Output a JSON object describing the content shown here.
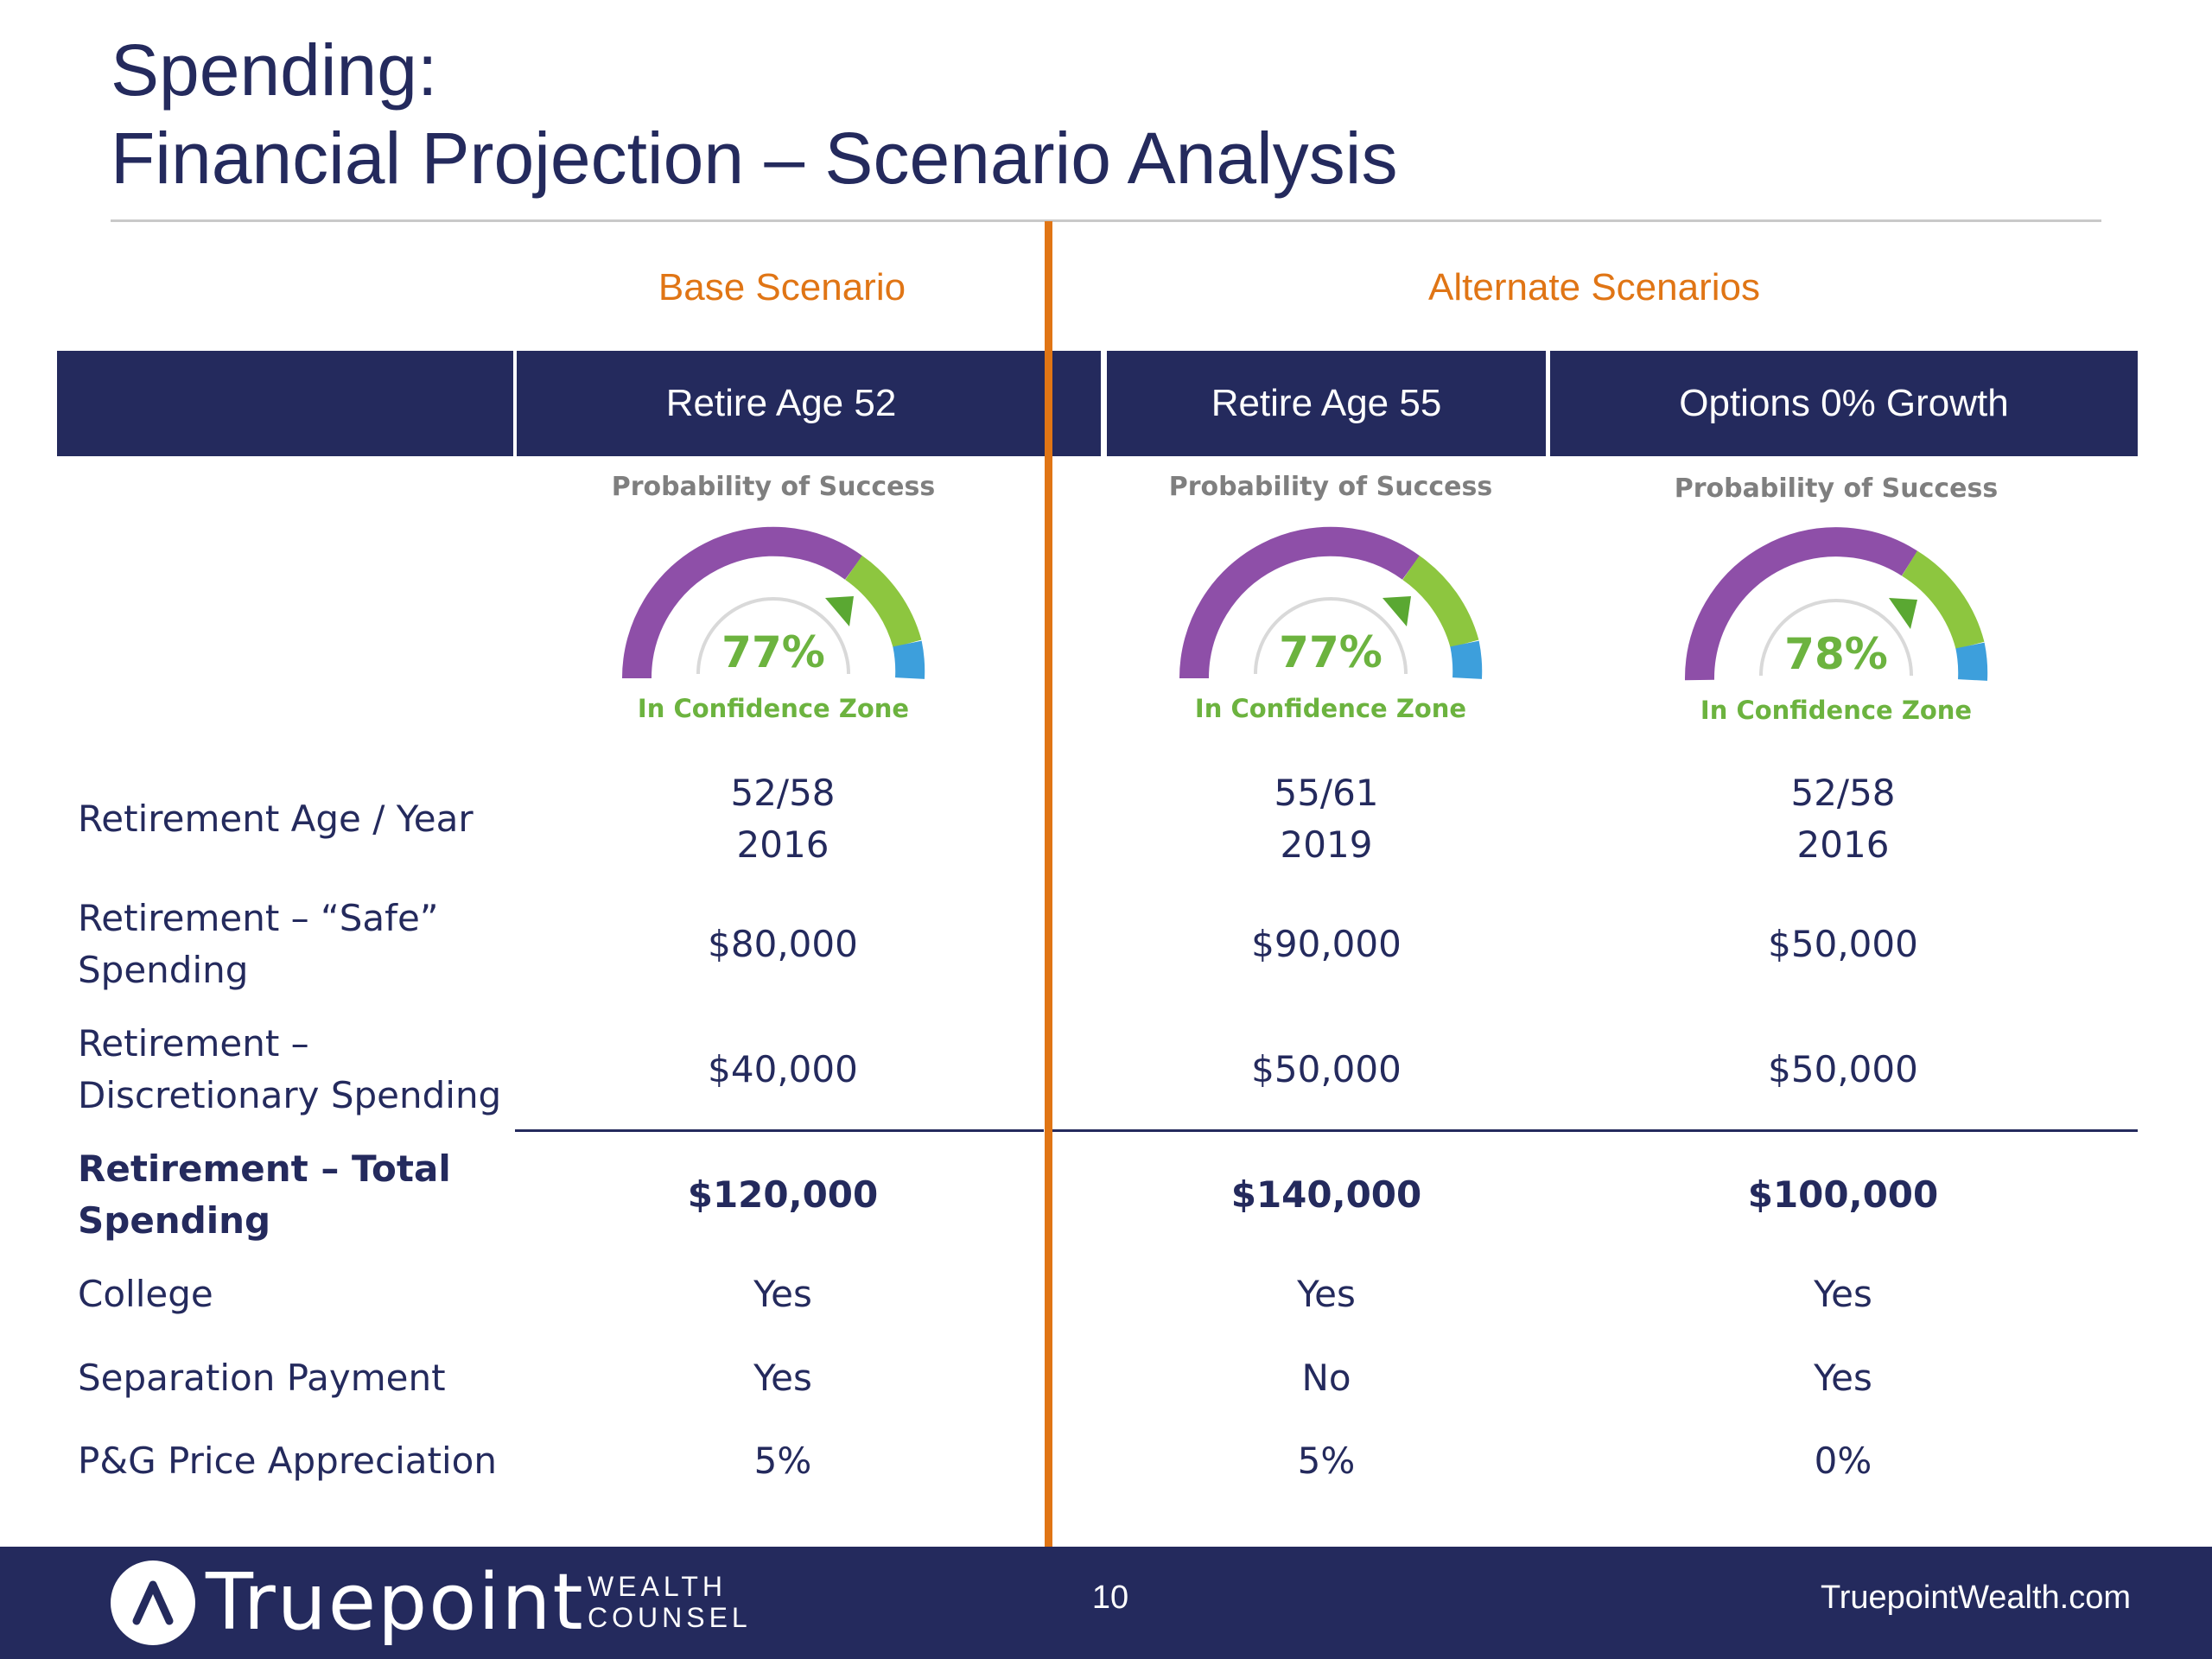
{
  "title": {
    "line1": "Spending:",
    "line2": "Financial Projection – Scenario Analysis"
  },
  "groups": {
    "base": "Base Scenario",
    "alternate": "Alternate Scenarios"
  },
  "columns": [
    {
      "header": "Retire Age 52",
      "gauge": {
        "caption": "Probability of Success",
        "value": "77%",
        "zone": "In Confidence Zone",
        "probability": 0.77
      }
    },
    {
      "header": "Retire Age 55",
      "gauge": {
        "caption": "Probability of Success",
        "value": "77%",
        "zone": "In Confidence Zone",
        "probability": 0.77
      }
    },
    {
      "header": "Options 0% Growth",
      "gauge": {
        "caption": "Probability of Success",
        "value": "78%",
        "zone": "In Confidence Zone",
        "probability": 0.78
      }
    }
  ],
  "rows": [
    {
      "label": "Retirement Age / Year",
      "values": [
        "52/58\n2016",
        "55/61\n2019",
        "52/58\n2016"
      ]
    },
    {
      "label": "Retirement – “Safe” Spending",
      "values": [
        "$80,000",
        "$90,000",
        "$50,000"
      ]
    },
    {
      "label": "Retirement – Discretionary Spending",
      "values": [
        "$40,000",
        "$50,000",
        "$50,000"
      ]
    },
    {
      "label": "Retirement – Total Spending",
      "values": [
        "$120,000",
        "$140,000",
        "$100,000"
      ]
    },
    {
      "label": "College",
      "values": [
        "Yes",
        "Yes",
        "Yes"
      ]
    },
    {
      "label": "Separation Payment",
      "values": [
        "Yes",
        "No",
        "Yes"
      ]
    },
    {
      "label": "P&G Price Appreciation",
      "values": [
        "5%",
        "5%",
        "0%"
      ]
    }
  ],
  "footer": {
    "brand": "Truepoint",
    "brand_sub_1": "WEALTH",
    "brand_sub_2": "COUNSEL",
    "page": "10",
    "website": "TruepointWealth.com"
  },
  "colors": {
    "navy": "#242a5d",
    "orange": "#e07515",
    "gauge_purple": "#8e4fa8",
    "gauge_green": "#8dc63f",
    "gauge_blue": "#3d9fdc",
    "gauge_text": "#6cb33f"
  }
}
